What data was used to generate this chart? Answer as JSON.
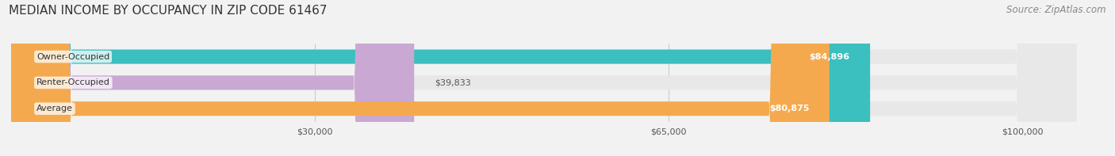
{
  "title": "MEDIAN INCOME BY OCCUPANCY IN ZIP CODE 61467",
  "source": "Source: ZipAtlas.com",
  "categories": [
    "Owner-Occupied",
    "Renter-Occupied",
    "Average"
  ],
  "values": [
    84896,
    39833,
    80875
  ],
  "bar_colors": [
    "#3bbfbf",
    "#c9a8d4",
    "#f5a94e"
  ],
  "value_labels": [
    "$84,896",
    "$39,833",
    "$80,875"
  ],
  "x_ticks": [
    30000,
    65000,
    100000
  ],
  "x_tick_labels": [
    "$30,000",
    "$65,000",
    "$100,000"
  ],
  "xlim": [
    0,
    108000
  ],
  "bar_height": 0.55,
  "background_color": "#f2f2f2",
  "bar_background_color": "#e8e8e8",
  "title_fontsize": 11,
  "source_fontsize": 8.5,
  "label_fontsize": 8,
  "value_fontsize": 8,
  "tick_fontsize": 8
}
